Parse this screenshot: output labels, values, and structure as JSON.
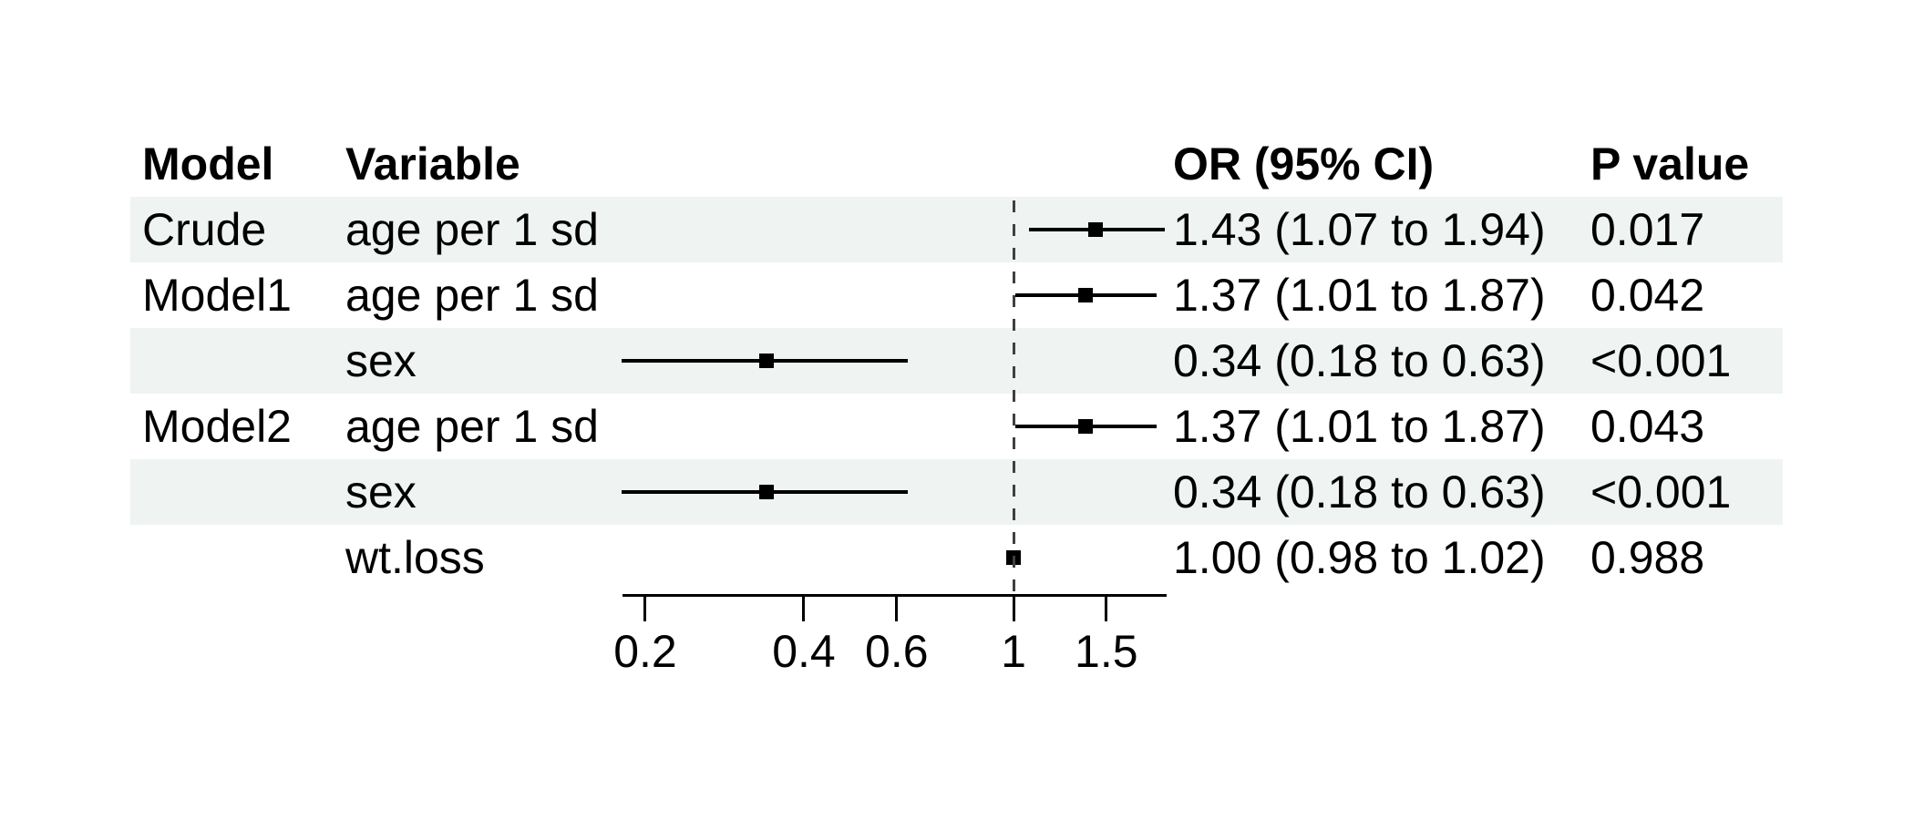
{
  "chart_data": {
    "type": "forest",
    "title": "",
    "x_scale": "log",
    "x_range": [
      0.18,
      1.97
    ],
    "x_ticks": [
      0.2,
      0.4,
      0.6,
      1,
      1.5
    ],
    "x_tick_labels": [
      "0.2",
      "0.4",
      "0.6",
      "1",
      "1.5"
    ],
    "ref_line": 1,
    "grid": false,
    "legend": "none",
    "columns": [
      {
        "label": "Model"
      },
      {
        "label": "Variable"
      },
      {
        "label": "OR (95% CI)"
      },
      {
        "label": "P value"
      }
    ],
    "rows": [
      {
        "model": "Crude",
        "variable": "age per 1 sd",
        "est": 1.43,
        "low": 1.07,
        "high": 1.94,
        "or_ci_label": "1.43 (1.07 to 1.94)",
        "p_label": "0.017",
        "shaded": true
      },
      {
        "model": "Model1",
        "variable": "age per 1 sd",
        "est": 1.37,
        "low": 1.01,
        "high": 1.87,
        "or_ci_label": "1.37 (1.01 to 1.87)",
        "p_label": "0.042",
        "shaded": false
      },
      {
        "model": "",
        "variable": "sex",
        "est": 0.34,
        "low": 0.18,
        "high": 0.63,
        "or_ci_label": "0.34 (0.18 to 0.63)",
        "p_label": "<0.001",
        "shaded": true
      },
      {
        "model": "Model2",
        "variable": "age per 1 sd",
        "est": 1.37,
        "low": 1.01,
        "high": 1.87,
        "or_ci_label": "1.37 (1.01 to 1.87)",
        "p_label": "0.043",
        "shaded": false
      },
      {
        "model": "",
        "variable": "sex",
        "est": 0.34,
        "low": 0.18,
        "high": 0.63,
        "or_ci_label": "0.34 (0.18 to 0.63)",
        "p_label": "<0.001",
        "shaded": true
      },
      {
        "model": "",
        "variable": "wt.loss",
        "est": 1.0,
        "low": 0.98,
        "high": 1.02,
        "or_ci_label": "1.00 (0.98 to 1.02)",
        "p_label": "0.988",
        "shaded": false
      }
    ],
    "colors": {
      "background": "#ffffff",
      "row_shading": "#eff3f2",
      "text": "#000000",
      "ci_line": "#000000",
      "marker": "#000000",
      "ref_line": "#404040",
      "axis": "#000000"
    }
  }
}
